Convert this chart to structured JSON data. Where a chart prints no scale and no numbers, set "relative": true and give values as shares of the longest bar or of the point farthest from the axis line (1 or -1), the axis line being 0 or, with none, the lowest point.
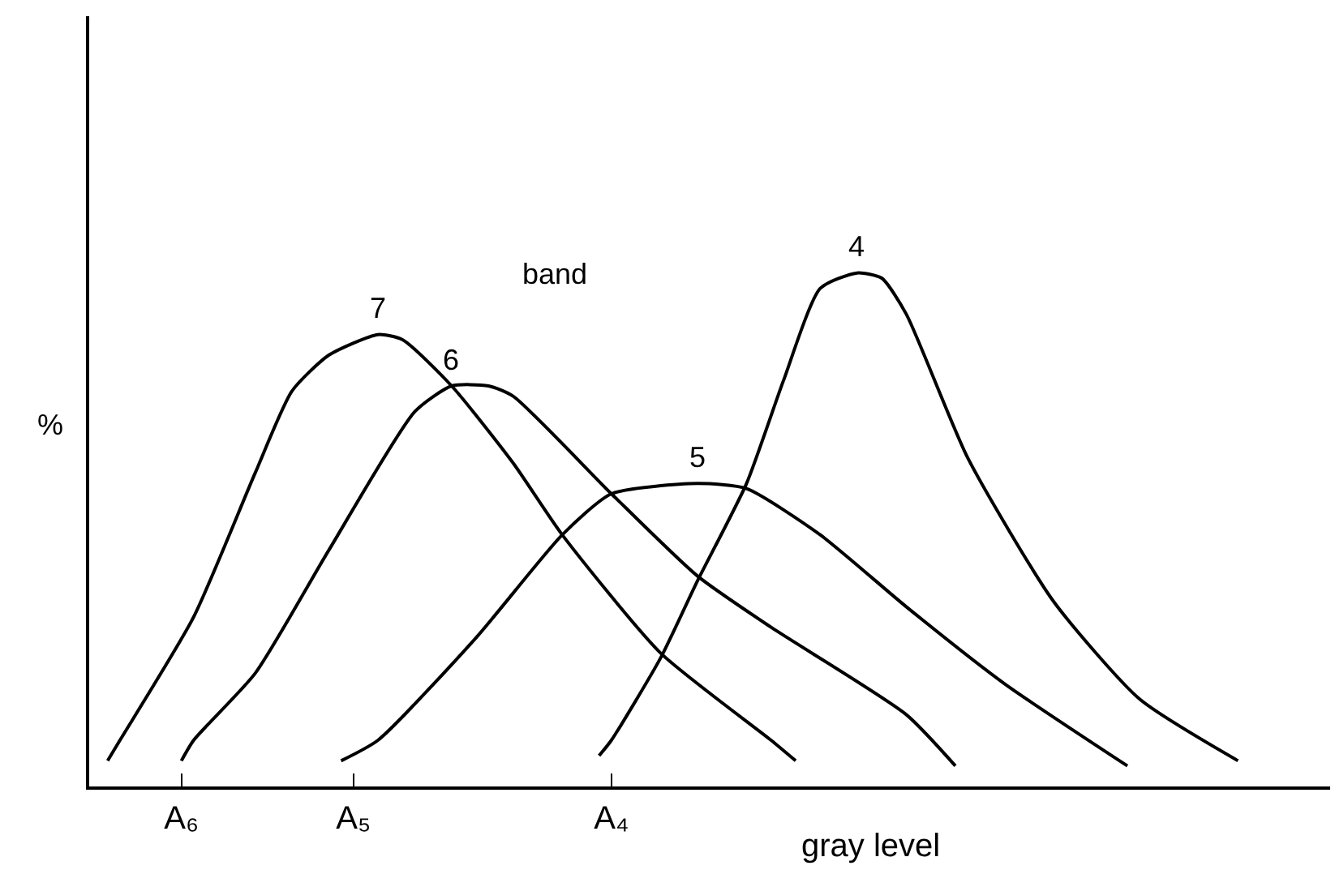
{
  "chart_data": {
    "type": "line",
    "relative": true,
    "xlabel": "gray level",
    "ylabel": "%",
    "annotations": [
      "band"
    ],
    "categories": [
      null,
      null,
      null,
      null,
      null,
      null,
      null,
      "A₆",
      null,
      null,
      null,
      null,
      null,
      null,
      null,
      null,
      null,
      null,
      null,
      null,
      null,
      "A₅",
      null,
      null,
      null,
      null,
      null,
      null,
      null,
      null,
      null,
      null,
      null,
      null,
      null,
      null,
      null,
      null,
      null,
      null,
      null,
      null,
      "A₄",
      null,
      null,
      null,
      null,
      null,
      null,
      null,
      null,
      null,
      null,
      null,
      null,
      null,
      null,
      null,
      null,
      null,
      null,
      null,
      null,
      null,
      null,
      null,
      null,
      null,
      null,
      null,
      null,
      null,
      null,
      null,
      null,
      null,
      null,
      null,
      null,
      null,
      null,
      null,
      null,
      null,
      null,
      null,
      null,
      null,
      null,
      null,
      null,
      null,
      null,
      null,
      null,
      null,
      null,
      null,
      null,
      null,
      null
    ],
    "tick_labels": "x",
    "grid": false,
    "legend": false,
    "marker": "none",
    "line_style": "solid",
    "series": [
      {
        "name": "7",
        "color": "#000000",
        "values": [
          null,
          0.05,
          0.09,
          null,
          null,
          null,
          null,
          null,
          0.33,
          null,
          null,
          null,
          null,
          0.61,
          null,
          null,
          0.77,
          null,
          null,
          0.84,
          null,
          null,
          null,
          0.88,
          null,
          0.87,
          null,
          null,
          null,
          0.78,
          null,
          null,
          null,
          null,
          0.63,
          null,
          null,
          null,
          0.49,
          null,
          null,
          null,
          null,
          null,
          null,
          null,
          0.26,
          null,
          null,
          null,
          null,
          null,
          null,
          null,
          null,
          0.09,
          null,
          0.05,
          null,
          null,
          null,
          null,
          null,
          null,
          null,
          null,
          null,
          null,
          null,
          null,
          null,
          null,
          null,
          null,
          null,
          null,
          null,
          null,
          null,
          null,
          null,
          null,
          null,
          null,
          null,
          null,
          null,
          null,
          null,
          null,
          null,
          null,
          null,
          null,
          null,
          null,
          null,
          null,
          null,
          null,
          null
        ]
      },
      {
        "name": "6",
        "color": "#000000",
        "values": [
          null,
          null,
          null,
          null,
          null,
          null,
          null,
          0.05,
          0.09,
          null,
          null,
          null,
          null,
          0.22,
          null,
          null,
          null,
          null,
          null,
          0.46,
          null,
          null,
          null,
          null,
          null,
          null,
          0.73,
          null,
          null,
          0.78,
          null,
          null,
          0.78,
          null,
          0.76,
          null,
          null,
          null,
          null,
          null,
          null,
          null,
          0.57,
          null,
          null,
          null,
          null,
          null,
          null,
          0.41,
          null,
          null,
          null,
          null,
          null,
          0.31,
          null,
          null,
          null,
          null,
          null,
          null,
          null,
          null,
          null,
          null,
          0.14,
          null,
          null,
          null,
          0.04,
          null,
          null,
          null,
          null,
          null,
          null,
          null,
          null,
          null,
          null,
          null,
          null,
          null,
          null,
          null,
          null,
          null,
          null,
          null,
          null,
          null,
          null,
          null,
          null,
          null,
          null,
          null,
          null,
          null,
          null
        ]
      },
      {
        "name": "5",
        "color": "#000000",
        "values": [
          null,
          null,
          null,
          null,
          null,
          null,
          null,
          null,
          null,
          null,
          null,
          null,
          null,
          null,
          null,
          null,
          null,
          null,
          null,
          null,
          0.05,
          null,
          null,
          0.09,
          null,
          null,
          null,
          null,
          null,
          null,
          null,
          0.29,
          null,
          null,
          null,
          null,
          null,
          null,
          0.49,
          null,
          null,
          null,
          0.57,
          null,
          null,
          null,
          null,
          null,
          null,
          0.59,
          null,
          null,
          null,
          0.58,
          null,
          null,
          null,
          null,
          null,
          0.49,
          null,
          null,
          null,
          null,
          null,
          null,
          0.35,
          null,
          null,
          null,
          null,
          null,
          null,
          null,
          0.2,
          null,
          null,
          null,
          null,
          null,
          null,
          null,
          null,
          null,
          0.04,
          null,
          null,
          null,
          null,
          null,
          null,
          null,
          null,
          null,
          null,
          null,
          null,
          null,
          null,
          null,
          null
        ]
      },
      {
        "name": "4",
        "color": "#000000",
        "values": [
          null,
          null,
          null,
          null,
          null,
          null,
          null,
          null,
          null,
          null,
          null,
          null,
          null,
          null,
          null,
          null,
          null,
          null,
          null,
          null,
          null,
          null,
          null,
          null,
          null,
          null,
          null,
          null,
          null,
          null,
          null,
          null,
          null,
          null,
          null,
          null,
          null,
          null,
          null,
          null,
          null,
          0.06,
          0.09,
          null,
          null,
          null,
          0.25,
          null,
          null,
          0.4,
          null,
          null,
          null,
          0.59,
          null,
          null,
          0.79,
          null,
          null,
          0.97,
          null,
          null,
          1.0,
          null,
          0.99,
          null,
          0.92,
          null,
          null,
          null,
          null,
          0.64,
          null,
          null,
          null,
          null,
          null,
          null,
          0.36,
          null,
          null,
          null,
          null,
          null,
          null,
          0.17,
          null,
          null,
          null,
          null,
          null,
          null,
          null,
          0.05,
          null,
          null,
          null,
          null,
          null,
          null,
          null
        ]
      }
    ]
  }
}
